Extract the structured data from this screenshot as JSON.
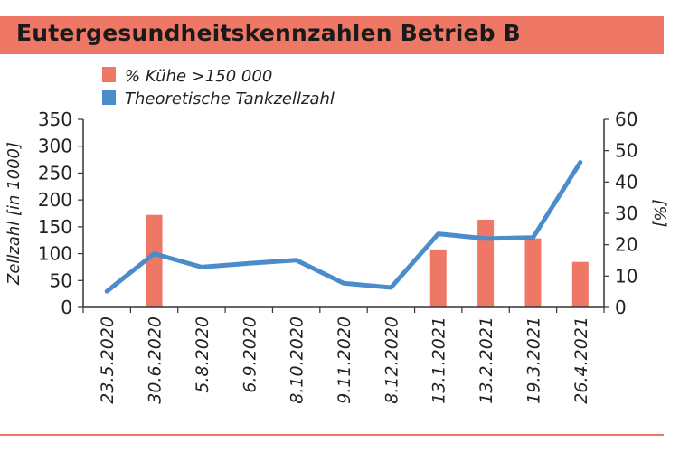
{
  "chart_data": {
    "type": "bar+line",
    "title": "Eutergesundheitskennzahlen Betrieb B",
    "categories": [
      "23.5.2020",
      "30.6.2020",
      "5.8.2020",
      "6.9.2020",
      "8.10.2020",
      "9.11.2020",
      "8.12.2020",
      "13.1.2021",
      "13.2.2021",
      "19.3.2021",
      "26.4.2021"
    ],
    "series": [
      {
        "name": "% Kühe >150 000",
        "kind": "bar",
        "axis": "right",
        "color": "#ee7766",
        "values": [
          null,
          29.5,
          null,
          null,
          null,
          null,
          null,
          18.5,
          28,
          22,
          14.5
        ]
      },
      {
        "name": "Theoretische Tankzellzahl",
        "kind": "line",
        "axis": "left",
        "color": "#4a8ccc",
        "values": [
          30,
          100,
          75,
          82,
          88,
          45,
          37,
          137,
          128,
          130,
          270
        ]
      }
    ],
    "ylabel_left": "Zellzahl [in 1000]",
    "ylabel_right": "[%]",
    "ylim_left": [
      0,
      350
    ],
    "ylim_right": [
      0,
      60
    ],
    "yticks_left": [
      0,
      50,
      100,
      150,
      200,
      250,
      300,
      350
    ],
    "yticks_right": [
      0,
      10,
      20,
      30,
      40,
      50,
      60
    ],
    "legend": "top-left"
  }
}
